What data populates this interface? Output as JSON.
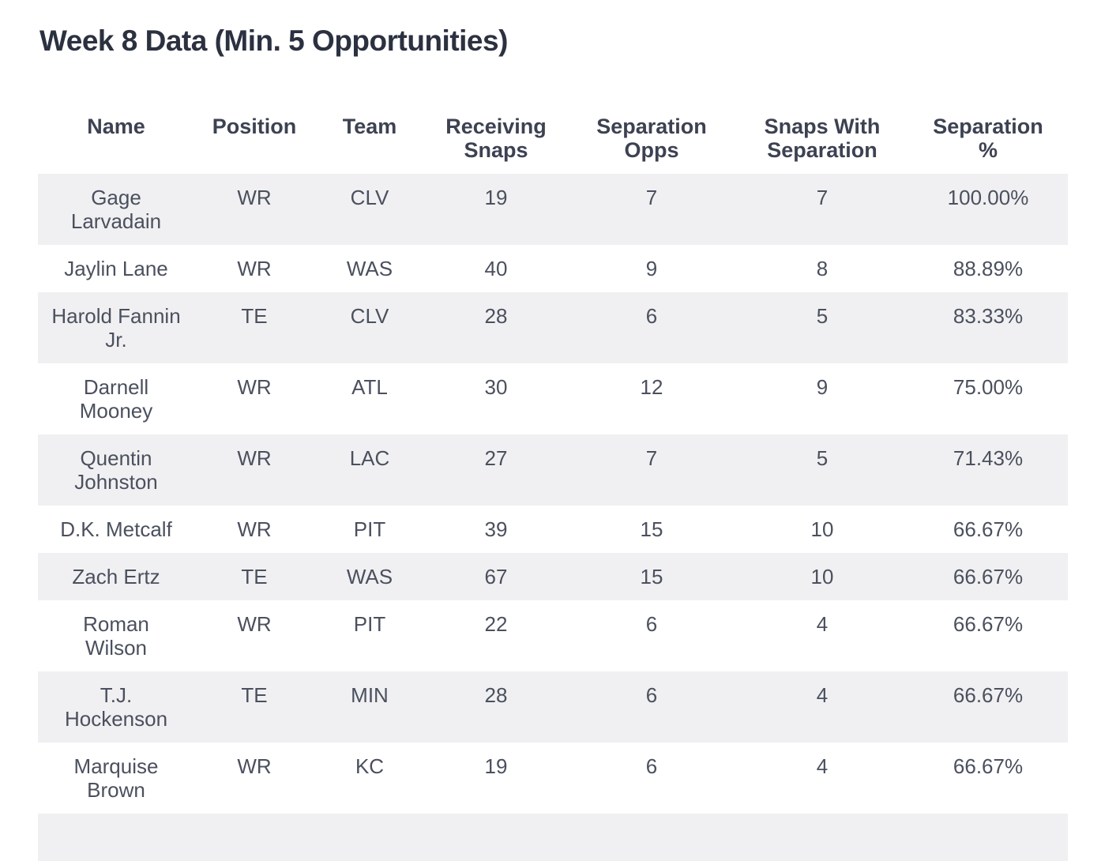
{
  "page": {
    "title": "Week 8 Data (Min. 5 Opportunities)"
  },
  "colors": {
    "page_bg": "#ffffff",
    "title_text": "#2c3140",
    "header_text": "#3d4252",
    "body_text": "#4b505e",
    "alt_row_bg": "#f0f0f2"
  },
  "table": {
    "columns": [
      {
        "id": "name",
        "label": "Name"
      },
      {
        "id": "position",
        "label": "Position"
      },
      {
        "id": "team",
        "label": "Team"
      },
      {
        "id": "receiving_snaps",
        "label": "Receiving\nSnaps"
      },
      {
        "id": "separation_opps",
        "label": "Separation\nOpps"
      },
      {
        "id": "snaps_with_separation",
        "label": "Snaps With\nSeparation"
      },
      {
        "id": "separation_pct",
        "label": "Separation\n%"
      }
    ],
    "rows": [
      {
        "name": "Gage\nLarvadain",
        "position": "WR",
        "team": "CLV",
        "receiving_snaps": "19",
        "separation_opps": "7",
        "snaps_with_separation": "7",
        "separation_pct": "100.00%"
      },
      {
        "name": "Jaylin Lane",
        "position": "WR",
        "team": "WAS",
        "receiving_snaps": "40",
        "separation_opps": "9",
        "snaps_with_separation": "8",
        "separation_pct": "88.89%"
      },
      {
        "name": "Harold Fannin\nJr.",
        "position": "TE",
        "team": "CLV",
        "receiving_snaps": "28",
        "separation_opps": "6",
        "snaps_with_separation": "5",
        "separation_pct": "83.33%"
      },
      {
        "name": "Darnell\nMooney",
        "position": "WR",
        "team": "ATL",
        "receiving_snaps": "30",
        "separation_opps": "12",
        "snaps_with_separation": "9",
        "separation_pct": "75.00%"
      },
      {
        "name": "Quentin\nJohnston",
        "position": "WR",
        "team": "LAC",
        "receiving_snaps": "27",
        "separation_opps": "7",
        "snaps_with_separation": "5",
        "separation_pct": "71.43%"
      },
      {
        "name": "D.K. Metcalf",
        "position": "WR",
        "team": "PIT",
        "receiving_snaps": "39",
        "separation_opps": "15",
        "snaps_with_separation": "10",
        "separation_pct": "66.67%"
      },
      {
        "name": "Zach Ertz",
        "position": "TE",
        "team": "WAS",
        "receiving_snaps": "67",
        "separation_opps": "15",
        "snaps_with_separation": "10",
        "separation_pct": "66.67%"
      },
      {
        "name": "Roman\nWilson",
        "position": "WR",
        "team": "PIT",
        "receiving_snaps": "22",
        "separation_opps": "6",
        "snaps_with_separation": "4",
        "separation_pct": "66.67%"
      },
      {
        "name": "T.J.\nHockenson",
        "position": "TE",
        "team": "MIN",
        "receiving_snaps": "28",
        "separation_opps": "6",
        "snaps_with_separation": "4",
        "separation_pct": "66.67%"
      },
      {
        "name": "Marquise\nBrown",
        "position": "WR",
        "team": "KC",
        "receiving_snaps": "19",
        "separation_opps": "6",
        "snaps_with_separation": "4",
        "separation_pct": "66.67%"
      }
    ]
  }
}
